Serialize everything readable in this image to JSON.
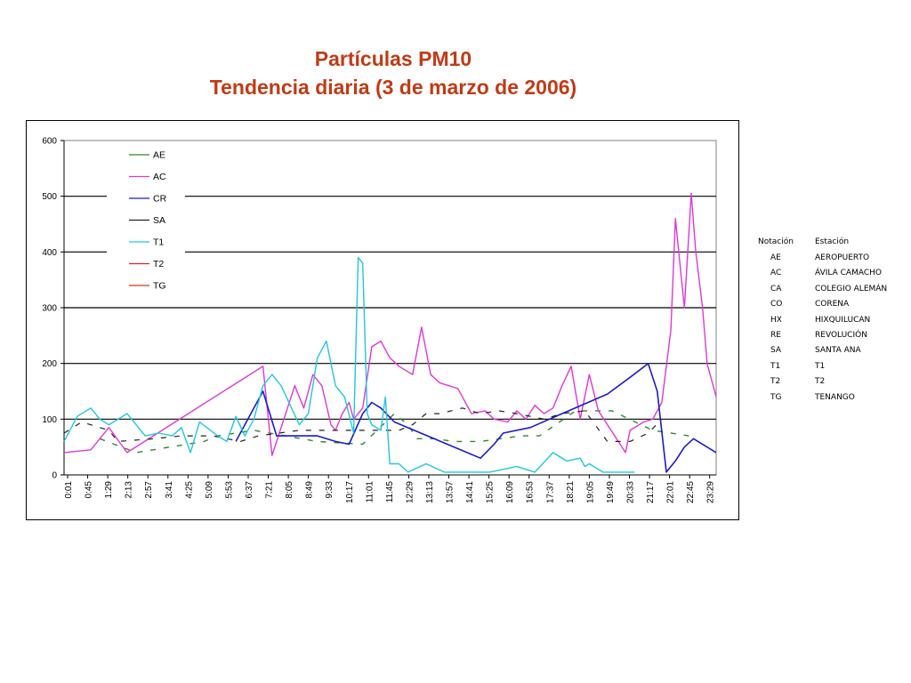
{
  "title": {
    "line1": "Partículas PM10",
    "line2": "Tendencia diaria (3 de marzo de 2006)"
  },
  "colors": {
    "title": "#c23a15"
  },
  "chart_data": {
    "type": "line",
    "ylim": [
      0,
      600
    ],
    "yticks": [
      0,
      100,
      200,
      300,
      400,
      500,
      600
    ],
    "grid": true,
    "legend_position": "top-left",
    "x_label_rotation": -90,
    "xticks": [
      "0:01",
      "0:45",
      "1:29",
      "2:13",
      "2:57",
      "3:41",
      "4:25",
      "5:09",
      "5:53",
      "6:37",
      "7:21",
      "8:05",
      "8:49",
      "9:33",
      "10:17",
      "11:01",
      "11:45",
      "12:29",
      "13:13",
      "13:57",
      "14:41",
      "15:25",
      "16:09",
      "16:53",
      "17:37",
      "18:21",
      "19:05",
      "19:49",
      "20:33",
      "21:17",
      "22:01",
      "22:45",
      "23:29"
    ],
    "x_range_minutes": [
      1,
      1440
    ],
    "series": [
      {
        "name": "AE",
        "color": "#2a8a2a",
        "width": 1.4,
        "dashed": true,
        "points": [
          [
            80,
            65
          ],
          [
            160,
            40
          ],
          [
            310,
            60
          ],
          [
            340,
            70
          ],
          [
            420,
            80
          ],
          [
            560,
            60
          ],
          [
            660,
            55
          ],
          [
            730,
            110
          ],
          [
            760,
            90
          ],
          [
            780,
            65
          ],
          [
            820,
            65
          ],
          [
            860,
            60
          ],
          [
            920,
            60
          ],
          [
            1010,
            70
          ],
          [
            1050,
            70
          ],
          [
            1130,
            115
          ],
          [
            1210,
            115
          ],
          [
            1300,
            80
          ],
          [
            1380,
            70
          ]
        ]
      },
      {
        "name": "AC",
        "color": "#e236d8",
        "width": 1.4,
        "dashed": false,
        "points": [
          [
            1,
            40
          ],
          [
            60,
            45
          ],
          [
            100,
            85
          ],
          [
            140,
            40
          ],
          [
            440,
            195
          ],
          [
            460,
            35
          ],
          [
            490,
            110
          ],
          [
            510,
            160
          ],
          [
            530,
            120
          ],
          [
            550,
            180
          ],
          [
            570,
            160
          ],
          [
            590,
            90
          ],
          [
            600,
            80
          ],
          [
            615,
            110
          ],
          [
            630,
            130
          ],
          [
            640,
            100
          ],
          [
            660,
            120
          ],
          [
            680,
            230
          ],
          [
            700,
            240
          ],
          [
            720,
            210
          ],
          [
            740,
            195
          ],
          [
            770,
            180
          ],
          [
            790,
            265
          ],
          [
            810,
            180
          ],
          [
            830,
            165
          ],
          [
            850,
            160
          ],
          [
            870,
            155
          ],
          [
            900,
            110
          ],
          [
            930,
            115
          ],
          [
            950,
            100
          ],
          [
            980,
            95
          ],
          [
            1000,
            115
          ],
          [
            1020,
            100
          ],
          [
            1040,
            125
          ],
          [
            1060,
            110
          ],
          [
            1080,
            120
          ],
          [
            1100,
            160
          ],
          [
            1120,
            195
          ],
          [
            1140,
            100
          ],
          [
            1160,
            180
          ],
          [
            1180,
            115
          ],
          [
            1240,
            40
          ],
          [
            1250,
            80
          ],
          [
            1280,
            95
          ],
          [
            1300,
            100
          ],
          [
            1320,
            130
          ],
          [
            1340,
            260
          ],
          [
            1350,
            460
          ],
          [
            1360,
            380
          ],
          [
            1370,
            300
          ],
          [
            1385,
            505
          ],
          [
            1395,
            400
          ],
          [
            1410,
            300
          ],
          [
            1420,
            200
          ],
          [
            1430,
            170
          ],
          [
            1440,
            140
          ]
        ]
      },
      {
        "name": "CR",
        "color": "#1a1ad0",
        "width": 1.6,
        "dashed": false,
        "points": [
          [
            380,
            60
          ],
          [
            420,
            120
          ],
          [
            440,
            150
          ],
          [
            470,
            70
          ],
          [
            520,
            70
          ],
          [
            560,
            70
          ],
          [
            600,
            60
          ],
          [
            630,
            55
          ],
          [
            660,
            110
          ],
          [
            680,
            130
          ],
          [
            700,
            120
          ],
          [
            730,
            95
          ],
          [
            920,
            30
          ],
          [
            950,
            55
          ],
          [
            970,
            75
          ],
          [
            1030,
            85
          ],
          [
            1100,
            110
          ],
          [
            1200,
            145
          ],
          [
            1250,
            175
          ],
          [
            1290,
            200
          ],
          [
            1310,
            150
          ],
          [
            1330,
            5
          ],
          [
            1350,
            25
          ],
          [
            1370,
            50
          ],
          [
            1390,
            65
          ],
          [
            1440,
            40
          ]
        ]
      },
      {
        "name": "SA",
        "color": "#222222",
        "width": 1.2,
        "dashed": true,
        "points": [
          [
            1,
            75
          ],
          [
            40,
            95
          ],
          [
            100,
            80
          ],
          [
            120,
            60
          ],
          [
            200,
            65
          ],
          [
            260,
            70
          ],
          [
            330,
            70
          ],
          [
            390,
            60
          ],
          [
            430,
            70
          ],
          [
            520,
            80
          ],
          [
            740,
            80
          ],
          [
            770,
            90
          ],
          [
            800,
            110
          ],
          [
            830,
            110
          ],
          [
            880,
            120
          ],
          [
            920,
            110
          ],
          [
            960,
            115
          ],
          [
            1000,
            110
          ],
          [
            1060,
            100
          ],
          [
            1100,
            110
          ],
          [
            1150,
            115
          ],
          [
            1200,
            60
          ],
          [
            1250,
            60
          ],
          [
            1290,
            75
          ],
          [
            1320,
            100
          ]
        ]
      },
      {
        "name": "T1",
        "color": "#1ec8e0",
        "width": 1.4,
        "dashed": false,
        "points": [
          [
            1,
            60
          ],
          [
            30,
            105
          ],
          [
            60,
            120
          ],
          [
            80,
            100
          ],
          [
            100,
            90
          ],
          [
            140,
            110
          ],
          [
            180,
            70
          ],
          [
            210,
            75
          ],
          [
            240,
            70
          ],
          [
            260,
            85
          ],
          [
            280,
            40
          ],
          [
            300,
            95
          ],
          [
            340,
            70
          ],
          [
            360,
            60
          ],
          [
            380,
            105
          ],
          [
            400,
            70
          ],
          [
            420,
            100
          ],
          [
            440,
            160
          ],
          [
            460,
            180
          ],
          [
            480,
            160
          ],
          [
            520,
            90
          ],
          [
            540,
            110
          ],
          [
            560,
            210
          ],
          [
            580,
            240
          ],
          [
            600,
            160
          ],
          [
            620,
            140
          ],
          [
            640,
            75
          ],
          [
            650,
            390
          ],
          [
            660,
            380
          ],
          [
            670,
            110
          ],
          [
            680,
            90
          ],
          [
            700,
            80
          ],
          [
            710,
            140
          ],
          [
            720,
            20
          ],
          [
            740,
            20
          ],
          [
            760,
            5
          ],
          [
            800,
            20
          ],
          [
            840,
            5
          ],
          [
            880,
            5
          ],
          [
            940,
            5
          ],
          [
            1000,
            15
          ],
          [
            1040,
            5
          ],
          [
            1080,
            40
          ],
          [
            1110,
            25
          ],
          [
            1140,
            30
          ],
          [
            1150,
            15
          ],
          [
            1160,
            20
          ],
          [
            1190,
            5
          ],
          [
            1220,
            5
          ],
          [
            1260,
            5
          ]
        ]
      }
    ],
    "legend": [
      "AE",
      "AC",
      "CR",
      "SA",
      "T1",
      "T2",
      "TG"
    ],
    "legend_colors": [
      "#2a8a2a",
      "#e236d8",
      "#1a1ad0",
      "#222222",
      "#1ec8e0",
      "#e02020",
      "#d23a10"
    ]
  },
  "notes_table": {
    "headers": [
      "Notación",
      "Estación"
    ],
    "rows": [
      [
        "AE",
        "AEROPUERTO"
      ],
      [
        "AC",
        "ÁVILA CAMACHO"
      ],
      [
        "CA",
        "COLEGIO ALEMÁN"
      ],
      [
        "CO",
        "CORENA"
      ],
      [
        "HX",
        "HIXQUILUCAN"
      ],
      [
        "RE",
        "REVOLUCIÓN"
      ],
      [
        "SA",
        "SANTA ANA"
      ],
      [
        "T1",
        "T1"
      ],
      [
        "T2",
        "T2"
      ],
      [
        "TG",
        "TENANGO"
      ]
    ]
  }
}
